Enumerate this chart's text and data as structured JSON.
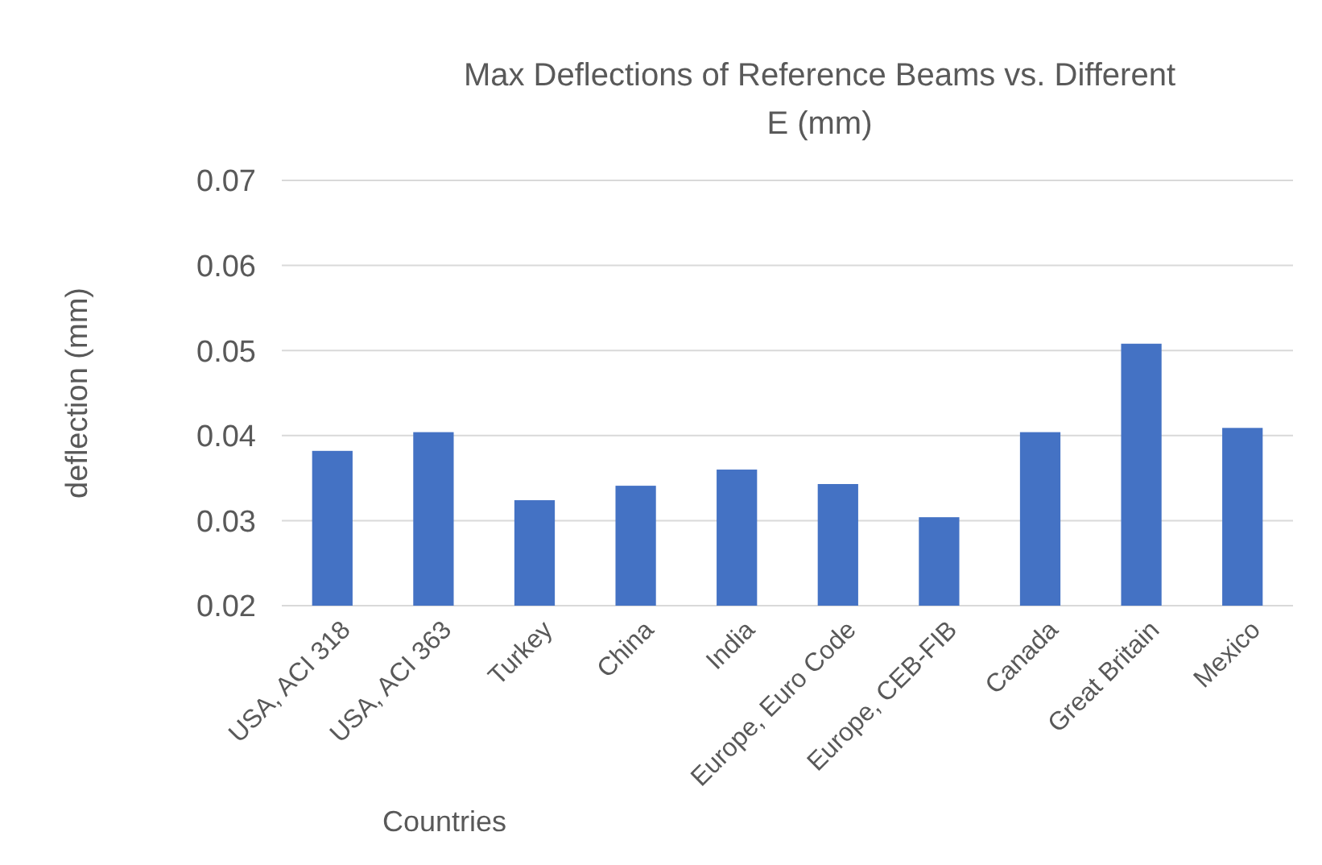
{
  "chart_data": {
    "type": "bar",
    "title": "Max Deflections of Reference Beams vs. Different E (mm)",
    "xlabel": "Countries",
    "ylabel": "deflection (mm)",
    "categories": [
      "USA, ACI 318",
      "USA, ACI 363",
      "Turkey",
      "China",
      "India",
      "Europe, Euro Code",
      "Europe, CEB-FIB",
      "Canada",
      "Great Britain",
      "Mexico"
    ],
    "values": [
      0.0382,
      0.0404,
      0.0324,
      0.0341,
      0.036,
      0.0343,
      0.0304,
      0.0404,
      0.0508,
      0.0409
    ],
    "color": "#4472c4",
    "ylim": [
      0.02,
      0.07
    ],
    "yticks": [
      0.02,
      0.03,
      0.04,
      0.05,
      0.06,
      0.07
    ],
    "grid": "y"
  }
}
